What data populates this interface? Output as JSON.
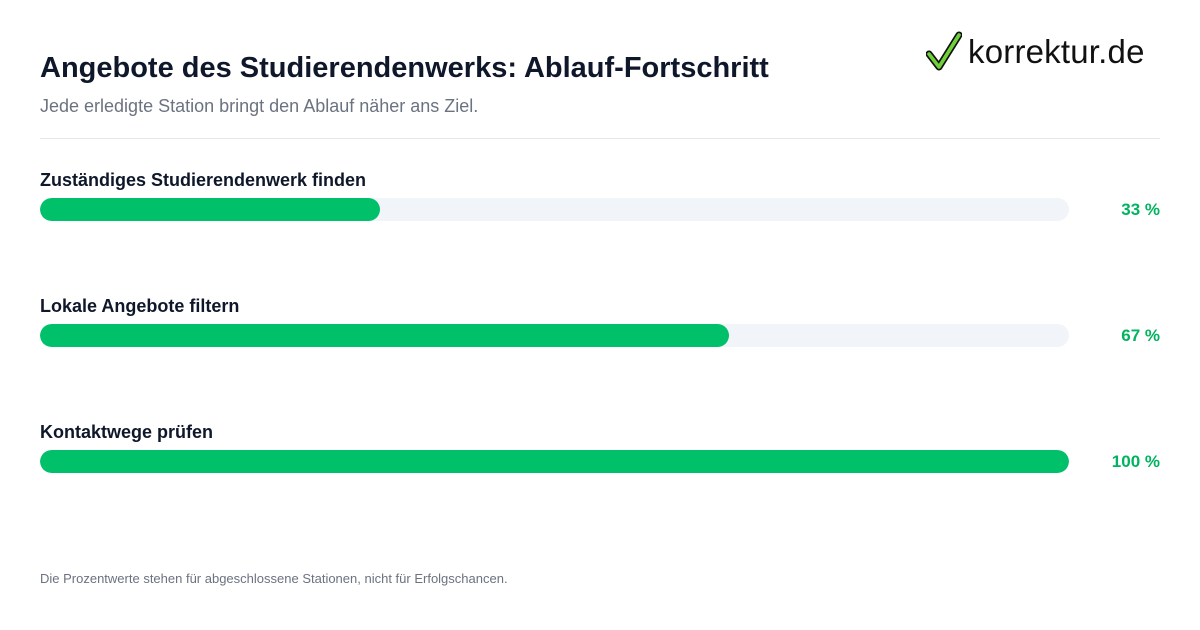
{
  "header": {
    "title": "Angebote des Studierendenwerks: Ablauf-Fortschritt",
    "subtitle": "Jede erledigte Station bringt den Ablauf näher ans Ziel."
  },
  "logo": {
    "text": "korrektur.de",
    "icon": "checkmark-icon",
    "icon_color": "#6fd13a"
  },
  "chart_data": {
    "type": "bar",
    "orientation": "horizontal",
    "categories": [
      "Zuständiges Studierendenwerk finden",
      "Lokale Angebote filtern",
      "Kontaktwege prüfen"
    ],
    "values": [
      33,
      67,
      100
    ],
    "value_labels": [
      "33 %",
      "67 %",
      "100 %"
    ],
    "xlim": [
      0,
      100
    ],
    "grid": false,
    "bar_color": "#00c16a",
    "track_color": "#f1f5f9",
    "label_color": "#00b35f"
  },
  "footnote": "Die Prozentwerte stehen für abgeschlossene Stationen, nicht für Erfolgschancen."
}
